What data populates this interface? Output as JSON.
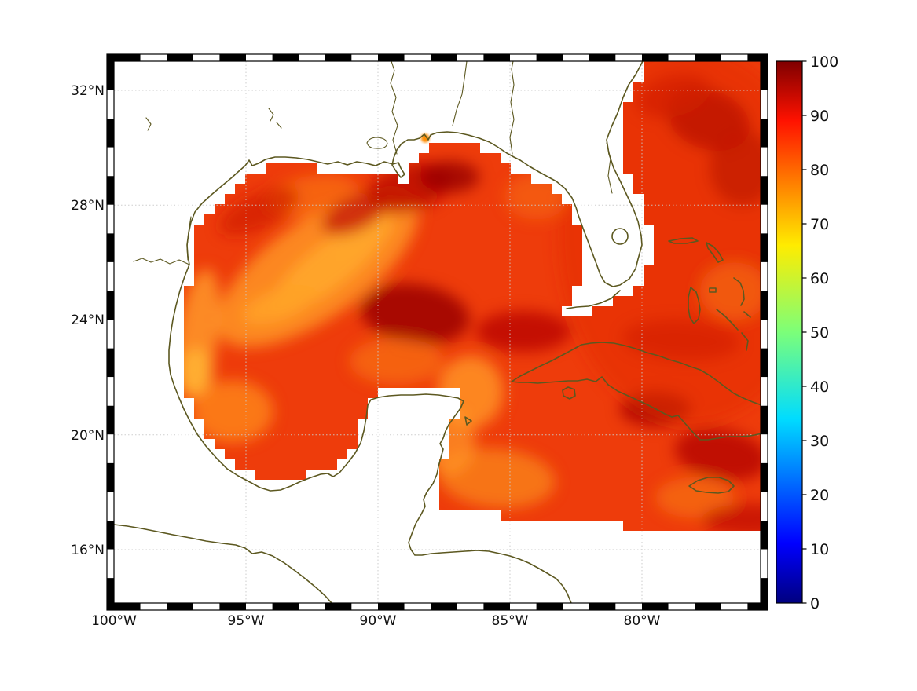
{
  "figure": {
    "background": "#ffffff"
  },
  "axes": {
    "x_tick_labels": [
      "100°W",
      "95°W",
      "90°W",
      "85°W",
      "80°W"
    ],
    "y_tick_labels": [
      "32°N",
      "28°N",
      "24°N",
      "20°N",
      "16°N"
    ]
  },
  "colorbar": {
    "tick_labels_top_to_bottom": [
      "100",
      "90",
      "80",
      "70",
      "60",
      "50",
      "40",
      "30",
      "20",
      "10",
      "0"
    ],
    "value_min": 0,
    "value_max": 100
  },
  "chart_data": {
    "type": "heatmap",
    "subtype": "geographic-field-map",
    "extent": {
      "lon_west": -100,
      "lon_east": -75.5,
      "lat_south": 14.1,
      "lat_north": 33.0
    },
    "graticule": {
      "lon_ticks": [
        -100,
        -95,
        -90,
        -85,
        -80
      ],
      "lat_ticks": [
        32,
        28,
        24,
        20,
        16
      ]
    },
    "colorbar_range": [
      0,
      100
    ],
    "colormap_stops": [
      {
        "pos": 0.0,
        "color": "#00007f"
      },
      {
        "pos": 0.11,
        "color": "#0000ff"
      },
      {
        "pos": 0.34,
        "color": "#00dcff"
      },
      {
        "pos": 0.5,
        "color": "#7cff79"
      },
      {
        "pos": 0.66,
        "color": "#ffec00"
      },
      {
        "pos": 0.89,
        "color": "#ff1200"
      },
      {
        "pos": 1.0,
        "color": "#7f0000"
      }
    ],
    "base_color": "#ee3c0b",
    "coastline_color": "#5c5820",
    "field_features": [
      {
        "name": "warm-yellow-band-core",
        "lon": -91.82,
        "lat": 25.9,
        "rx": 2.83,
        "ry": 0.77,
        "rot": -38,
        "color": "#ffd84d",
        "opacity": 0.95
      },
      {
        "name": "warm-yellow-band-ne",
        "lon": -90.6,
        "lat": 26.91,
        "rx": 1.34,
        "ry": 0.55,
        "rot": -30,
        "color": "#ffd139",
        "opacity": 0.9
      },
      {
        "name": "warm-yellow-band-sw",
        "lon": -93.75,
        "lat": 24.53,
        "rx": 1.49,
        "ry": 0.55,
        "rot": -20,
        "color": "#ffc832",
        "opacity": 0.85
      },
      {
        "name": "warm-orange-halo",
        "lon": -92.29,
        "lat": 25.79,
        "rx": 4.46,
        "ry": 1.7,
        "rot": -35,
        "color": "#ff9a26",
        "opacity": 0.8
      },
      {
        "name": "orange-nw-shelf",
        "lon": -92.5,
        "lat": 28.31,
        "rx": 1.79,
        "ry": 0.71,
        "rot": -10,
        "color": "#fb7d14",
        "opacity": 0.6
      },
      {
        "name": "dark-north-central",
        "lon": -88.81,
        "lat": 28.61,
        "rx": 1.64,
        "ry": 0.82,
        "rot": -15,
        "color": "#bd0a00",
        "opacity": 0.85
      },
      {
        "name": "dark-ne-gulf",
        "lon": -87.29,
        "lat": 28.99,
        "rx": 1.13,
        "ry": 0.55,
        "rot": 0,
        "color": "#970000",
        "opacity": 0.8
      },
      {
        "name": "dark-central-gulf",
        "lon": -88.6,
        "lat": 24.21,
        "rx": 2.08,
        "ry": 1.04,
        "rot": 8,
        "color": "#9b0300",
        "opacity": 0.85
      },
      {
        "name": "dark-florida-straits",
        "lon": -84.49,
        "lat": 23.6,
        "rx": 1.79,
        "ry": 0.71,
        "rot": 0,
        "color": "#b60800",
        "opacity": 0.75
      },
      {
        "name": "orange-yucatan-channel",
        "lon": -86.49,
        "lat": 21.5,
        "rx": 1.25,
        "ry": 1.26,
        "rot": 0,
        "color": "#ff9326",
        "opacity": 0.85
      },
      {
        "name": "orange-bay-of-campeche",
        "lon": -95.51,
        "lat": 20.81,
        "rx": 1.55,
        "ry": 1.09,
        "rot": 0,
        "color": "#ff8c1e",
        "opacity": 0.75
      },
      {
        "name": "orange-west-coast-band",
        "lon": -96.82,
        "lat": 23.49,
        "rx": 0.77,
        "ry": 2.32,
        "rot": 8,
        "color": "#ff9d2b",
        "opacity": 0.8
      },
      {
        "name": "bright-west-coast-spot",
        "lon": -96.9,
        "lat": 22.21,
        "rx": 0.65,
        "ry": 0.82,
        "rot": 0,
        "color": "#ffb234",
        "opacity": 0.9
      },
      {
        "name": "orange-nw-caribbean",
        "lon": -85.51,
        "lat": 18.49,
        "rx": 2.23,
        "ry": 1.04,
        "rot": 5,
        "color": "#fb8c1c",
        "opacity": 0.7
      },
      {
        "name": "dark-south-of-cuba",
        "lon": -79.49,
        "lat": 20.9,
        "rx": 1.34,
        "ry": 0.6,
        "rot": 0,
        "color": "#a80500",
        "opacity": 0.8
      },
      {
        "name": "dark-southeast",
        "lon": -76.99,
        "lat": 19.31,
        "rx": 1.79,
        "ry": 0.88,
        "rot": 10,
        "color": "#b00600",
        "opacity": 0.75
      },
      {
        "name": "dark-atlantic-a",
        "lon": -77.5,
        "lat": 30.99,
        "rx": 1.64,
        "ry": 1.04,
        "rot": 20,
        "color": "#9a0300",
        "opacity": 0.85
      },
      {
        "name": "dark-atlantic-b",
        "lon": -76.19,
        "lat": 29.29,
        "rx": 1.25,
        "ry": 1.31,
        "rot": 0,
        "color": "#a50500",
        "opacity": 0.8
      },
      {
        "name": "dark-atlantic-c",
        "lon": -78.81,
        "lat": 31.81,
        "rx": 1.43,
        "ry": 0.71,
        "rot": -15,
        "color": "#c01000",
        "opacity": 0.7
      },
      {
        "name": "dark-old-bahama-channel",
        "lon": -78.51,
        "lat": 23.3,
        "rx": 2.23,
        "ry": 0.71,
        "rot": 3,
        "color": "#c11000",
        "opacity": 0.65
      },
      {
        "name": "atlantic-deep-red-tint",
        "lon": -78.12,
        "lat": 26.94,
        "rx": 5.06,
        "ry": 6.56,
        "rot": 0,
        "color": "#e42d03",
        "opacity": 0.5
      },
      {
        "name": "dark-texas-shelf",
        "lon": -94.49,
        "lat": 27.79,
        "rx": 1.64,
        "ry": 0.6,
        "rot": -25,
        "color": "#d02002",
        "opacity": 0.7
      },
      {
        "name": "dark-north-of-band",
        "lon": -90.89,
        "lat": 27.71,
        "rx": 1.34,
        "ry": 0.6,
        "rot": -25,
        "color": "#c11102",
        "opacity": 0.75
      },
      {
        "name": "orange-south-of-jamaica",
        "lon": -78.0,
        "lat": 17.81,
        "rx": 1.49,
        "ry": 0.71,
        "rot": 0,
        "color": "#f97a12",
        "opacity": 0.6
      },
      {
        "name": "orange-mid-gulf-south",
        "lon": -89.29,
        "lat": 22.56,
        "rx": 1.79,
        "ry": 0.82,
        "rot": 0,
        "color": "#fb7f15",
        "opacity": 0.55
      },
      {
        "name": "dark-bottom-east",
        "lon": -75.95,
        "lat": 17.05,
        "rx": 1.79,
        "ry": 0.55,
        "rot": 0,
        "color": "#b50700",
        "opacity": 0.6
      },
      {
        "name": "orange-yucatan-coast",
        "lon": -87.3,
        "lat": 19.8,
        "rx": 1.0,
        "ry": 1.2,
        "rot": 0,
        "color": "#ff9a26",
        "opacity": 0.7
      },
      {
        "name": "orange-big-bend",
        "lon": -84.0,
        "lat": 28.3,
        "rx": 1.2,
        "ry": 0.8,
        "rot": 0,
        "color": "#f9741a",
        "opacity": 0.5
      },
      {
        "name": "orange-bahamas",
        "lon": -76.5,
        "lat": 25.0,
        "rx": 1.3,
        "ry": 1.0,
        "rot": 0,
        "color": "#f97c15",
        "opacity": 0.5
      },
      {
        "name": "coastal-orange-cell",
        "lon": -88.21,
        "lat": 30.33,
        "rx": 0.16,
        "ry": 0.15,
        "rot": 0,
        "color": "#ff8c00",
        "opacity": 1,
        "sharp": true
      }
    ]
  }
}
